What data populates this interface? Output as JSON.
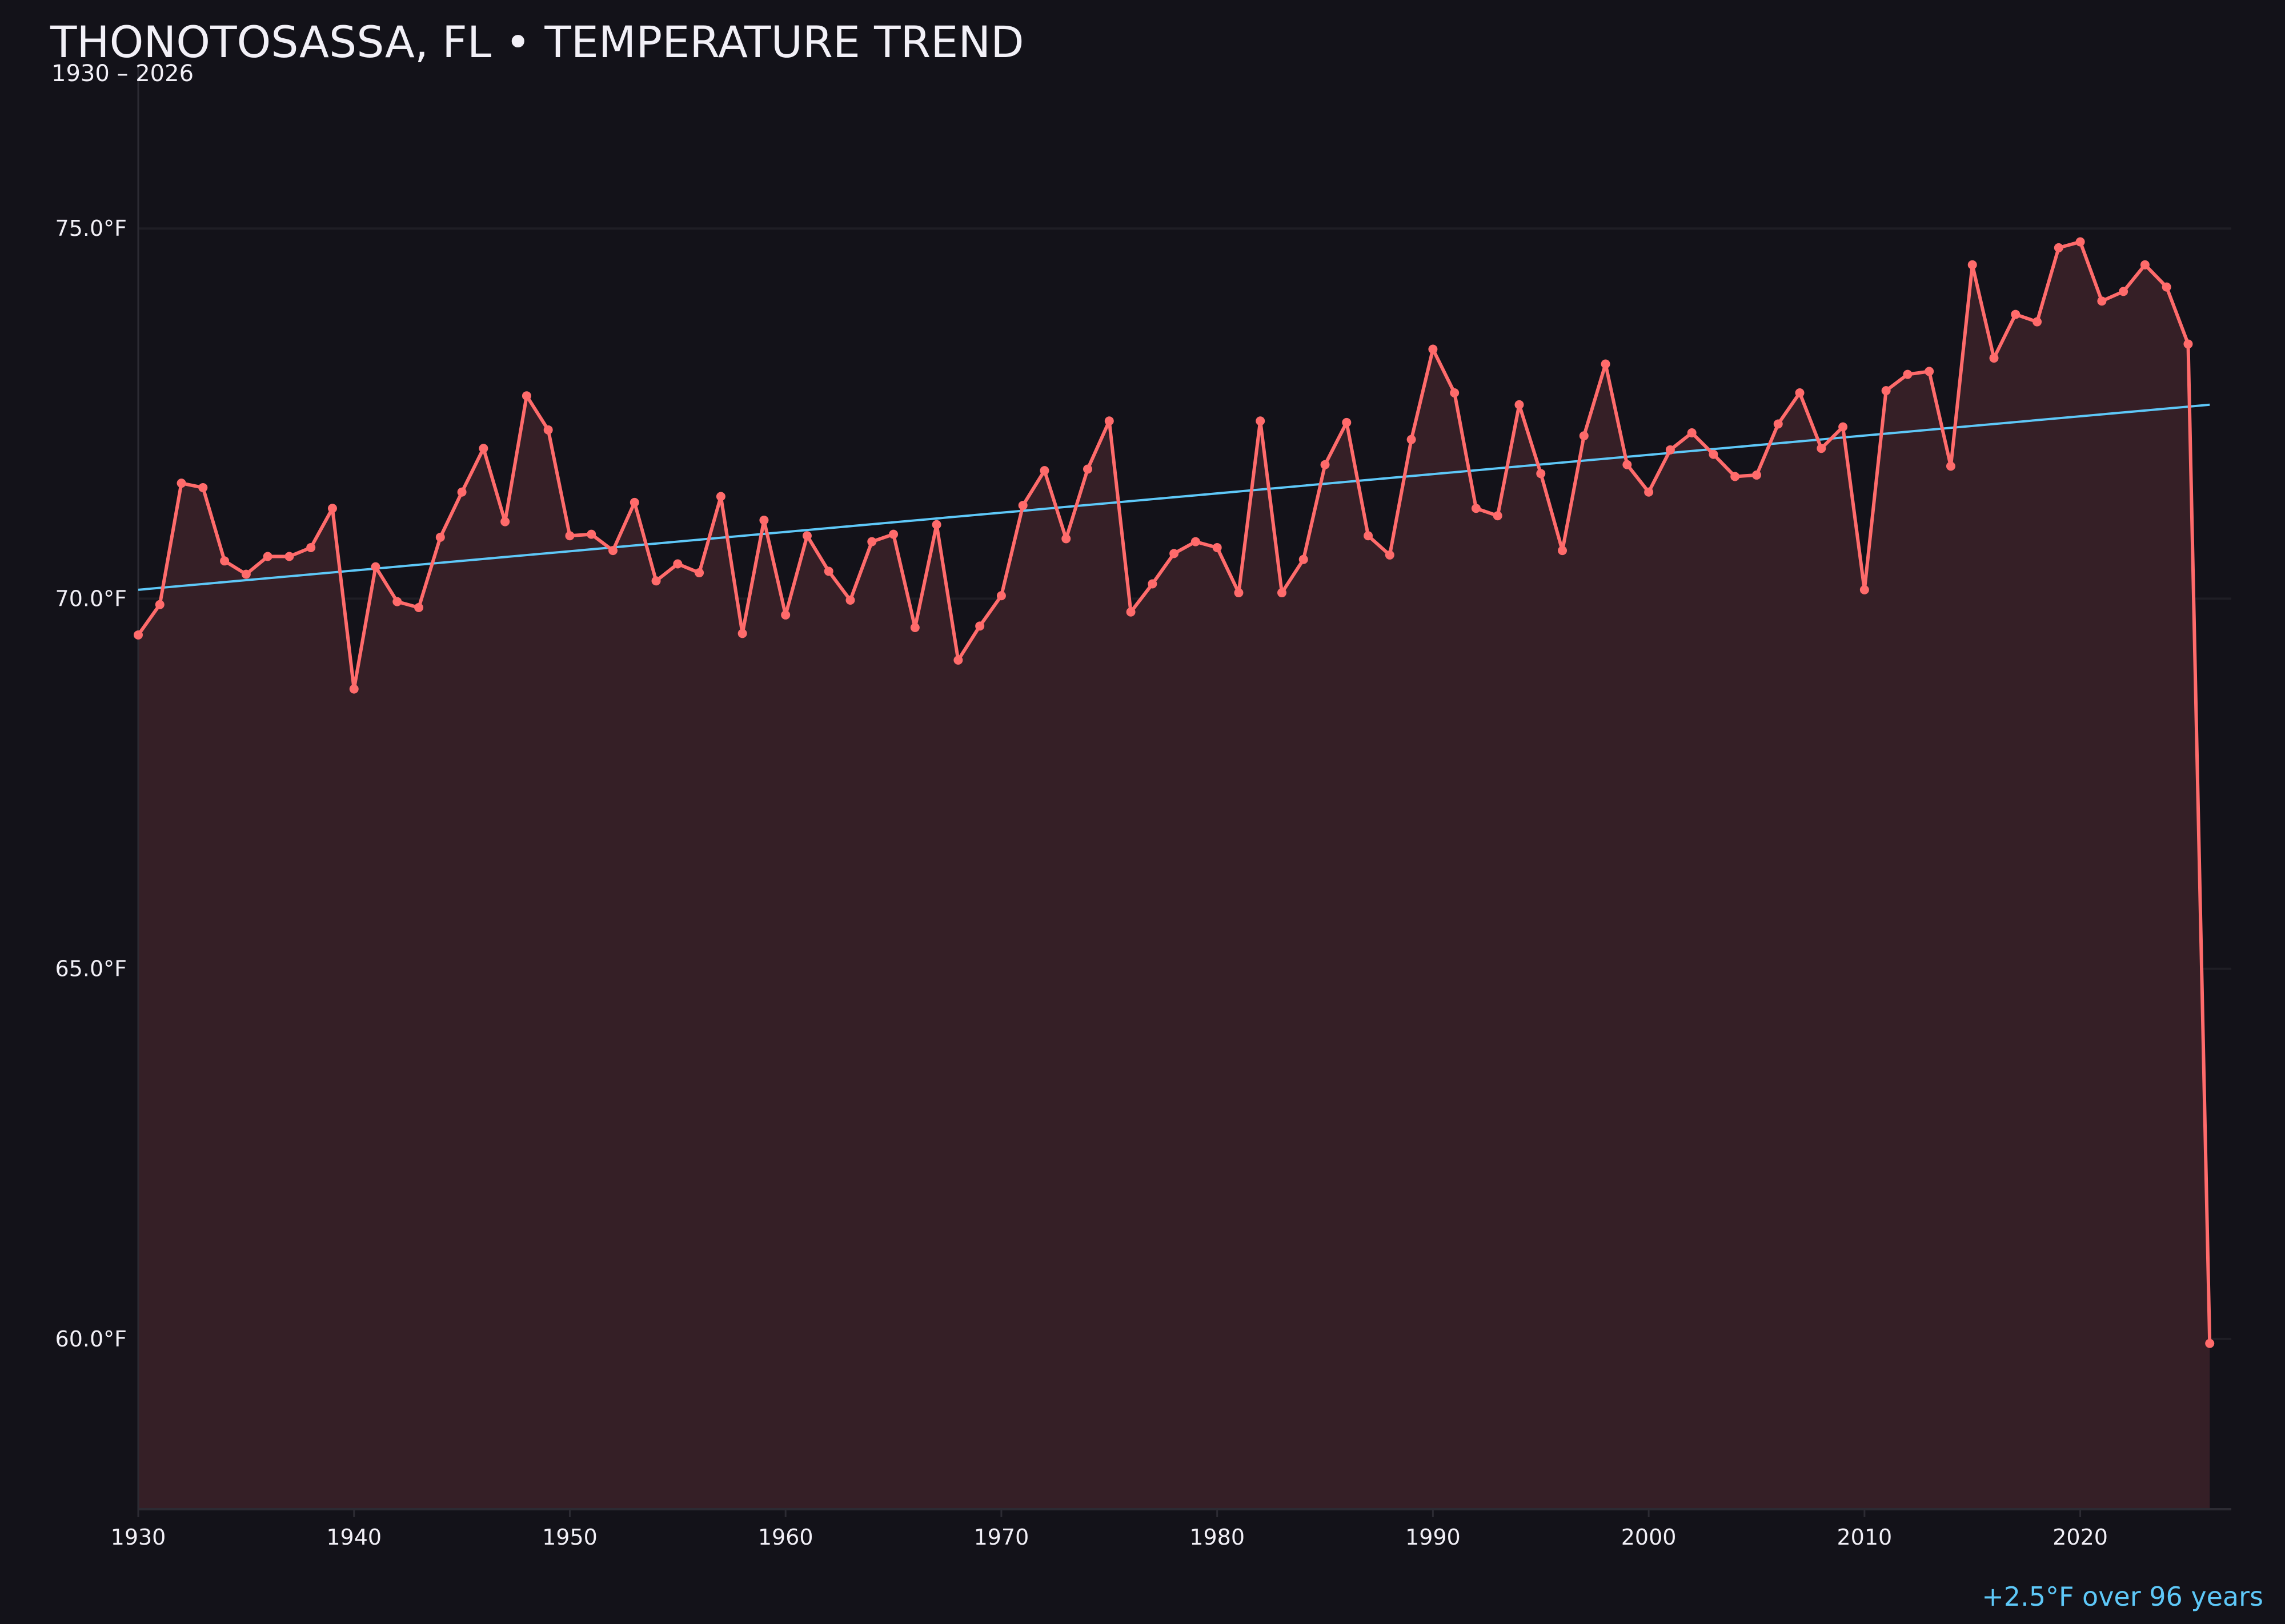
{
  "chart_data": {
    "type": "line",
    "title": "THONOTOSASSA, FL • TEMPERATURE TREND",
    "subtitle": "1930 – 2026",
    "xlabel": "",
    "ylabel": "",
    "xlim": [
      1930,
      2027
    ],
    "ylim": [
      57.7,
      77.2
    ],
    "grid": true,
    "x_ticks": [
      "1930",
      "1940",
      "1950",
      "1960",
      "1970",
      "1980",
      "1990",
      "2000",
      "2010",
      "2020"
    ],
    "y_ticks": [
      "60.0°F",
      "65.0°F",
      "70.0°F",
      "75.0°F"
    ],
    "y_tick_values": [
      60,
      65,
      70,
      75
    ],
    "colors": {
      "background": "#131219",
      "line": "#ff6b6b",
      "fill": "#351f26",
      "trend": "#5ec8f8",
      "grid": "#1f1e25",
      "text": "#f2f0f7"
    },
    "series": [
      {
        "x": [
          1930,
          1931,
          1932,
          1933,
          1934,
          1935,
          1936,
          1937,
          1938,
          1939,
          1940,
          1941,
          1942,
          1943,
          1944,
          1945,
          1946,
          1947,
          1948,
          1949,
          1950,
          1951,
          1952,
          1953,
          1954,
          1955,
          1956,
          1957,
          1958,
          1959,
          1960,
          1961,
          1962,
          1963,
          1964,
          1965,
          1966,
          1967,
          1968,
          1969,
          1970,
          1971,
          1972,
          1973,
          1974,
          1975,
          1976,
          1977,
          1978,
          1979,
          1980,
          1981,
          1982,
          1983,
          1984,
          1985,
          1986,
          1987,
          1988,
          1989,
          1990,
          1991,
          1992,
          1993,
          1994,
          1995,
          1996,
          1997,
          1998,
          1999,
          2000,
          2001,
          2002,
          2003,
          2004,
          2005,
          2006,
          2007,
          2008,
          2009,
          2010,
          2011,
          2012,
          2013,
          2014,
          2015,
          2016,
          2017,
          2018,
          2019,
          2020,
          2021,
          2022,
          2023,
          2024,
          2025,
          2026
        ],
        "y": [
          69.51,
          69.92,
          71.56,
          71.5,
          70.51,
          70.33,
          70.57,
          70.57,
          70.69,
          71.22,
          68.78,
          70.43,
          69.96,
          69.88,
          70.83,
          71.44,
          72.03,
          71.04,
          72.74,
          72.28,
          70.85,
          70.87,
          70.65,
          71.3,
          70.24,
          70.47,
          70.35,
          71.38,
          69.53,
          71.06,
          69.78,
          70.85,
          70.37,
          69.98,
          70.77,
          70.87,
          69.61,
          71.0,
          69.17,
          69.63,
          70.04,
          71.26,
          71.73,
          70.81,
          71.75,
          72.4,
          69.82,
          70.2,
          70.61,
          70.77,
          70.69,
          70.08,
          72.4,
          70.08,
          70.53,
          71.81,
          72.38,
          70.85,
          70.59,
          72.15,
          73.37,
          72.78,
          71.22,
          71.12,
          72.62,
          71.69,
          70.65,
          72.2,
          73.17,
          71.81,
          71.44,
          72.01,
          72.24,
          71.95,
          71.65,
          71.67,
          72.36,
          72.78,
          72.03,
          72.32,
          70.12,
          72.81,
          73.03,
          73.07,
          71.79,
          74.51,
          73.25,
          73.84,
          73.74,
          74.74,
          74.82,
          74.02,
          74.15,
          74.51,
          74.21,
          73.44,
          59.94
        ]
      }
    ],
    "trendline": {
      "x": [
        1930,
        2026
      ],
      "y": [
        70.12,
        72.62
      ]
    },
    "annotation": "+2.5°F over 96 years"
  }
}
